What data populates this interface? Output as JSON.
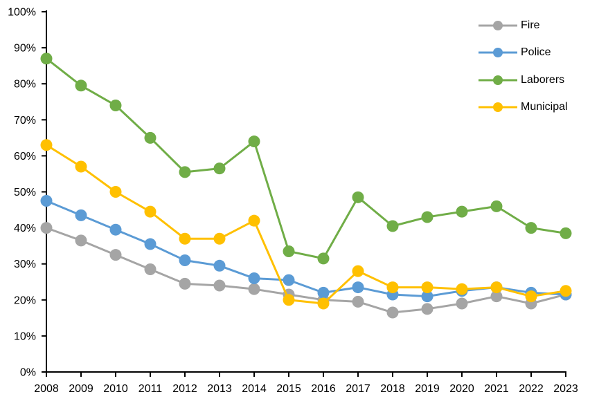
{
  "chart_data": {
    "type": "line",
    "title": "",
    "xlabel": "",
    "ylabel": "",
    "categories": [
      "2008",
      "2009",
      "2010",
      "2011",
      "2012",
      "2013",
      "2014",
      "2015",
      "2016",
      "2017",
      "2018",
      "2019",
      "2020",
      "2021",
      "2022",
      "2023"
    ],
    "y_tick_labels": [
      "0%",
      "10%",
      "20%",
      "30%",
      "40%",
      "50%",
      "60%",
      "70%",
      "80%",
      "90%",
      "100%"
    ],
    "ylim": [
      0,
      100
    ],
    "y_tick_step": 10,
    "grid": false,
    "legend_position": "top-right",
    "series": [
      {
        "name": "Fire",
        "color": "#A5A5A5",
        "values": [
          40,
          36.5,
          32.5,
          28.5,
          24.5,
          24,
          23,
          21.5,
          20,
          19.5,
          16.5,
          17.5,
          19,
          21,
          19,
          21.5
        ]
      },
      {
        "name": "Police",
        "color": "#5B9BD5",
        "values": [
          47.5,
          43.5,
          39.5,
          35.5,
          31,
          29.5,
          26,
          25.5,
          22,
          23.5,
          21.5,
          21,
          22.5,
          23.5,
          22,
          21.5
        ]
      },
      {
        "name": "Laborers",
        "color": "#70AD47",
        "values": [
          87,
          79.5,
          74,
          65,
          55.5,
          56.5,
          64,
          33.5,
          31.5,
          48.5,
          40.5,
          43,
          44.5,
          46,
          40,
          38.5
        ]
      },
      {
        "name": "Municipal",
        "color": "#FFC000",
        "values": [
          63,
          57,
          50,
          44.5,
          37,
          37,
          42,
          20,
          19,
          28,
          23.5,
          23.5,
          23,
          23.5,
          21,
          22.5
        ]
      }
    ]
  },
  "colors": {
    "axis": "#000000",
    "tick_text": "#000000",
    "background": "#FFFFFF"
  }
}
